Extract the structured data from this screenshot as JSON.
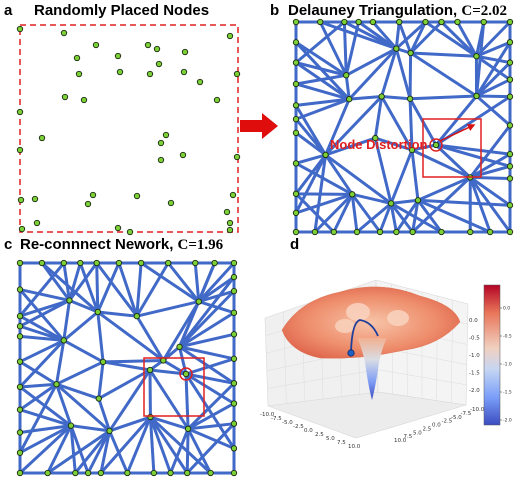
{
  "panels": {
    "a": {
      "letter": "a",
      "title": "Randomly Placed Nodes"
    },
    "b": {
      "letter": "b",
      "title": "Delauney Triangulation, ",
      "c_label": "C=2.02",
      "annotation": "Node Distortion"
    },
    "c": {
      "letter": "c",
      "title": "Re-connnect Nework, ",
      "c_label": "C=1.96"
    },
    "d": {
      "letter": "d",
      "x_ticks": [
        "-10.0",
        "-7.5",
        "-5.0",
        "-2.5",
        "0.0",
        "2.5",
        "5.0",
        "7.5",
        "10.0"
      ],
      "y_ticks": [
        "-10.0",
        "-7.5",
        "-5.0",
        "-2.5",
        "0.0",
        "2.5",
        "5.0",
        "7.5",
        "10.0"
      ],
      "z_ticks": [
        "0.0",
        "-0.5",
        "-1.0",
        "-1.5",
        "-2.0"
      ],
      "colorbar_ticks": [
        "0.0",
        "-0.5",
        "-1.0",
        "-1.5",
        "-2.0"
      ]
    }
  },
  "colors": {
    "edge": "#4169c8",
    "node_fill": "#7cd136",
    "node_stroke": "#1a2a10",
    "border_dashed": "#e02020",
    "highlight": "#e02020",
    "arrow": "#d81010"
  },
  "surface_colormap": [
    "#3b4cc0",
    "#6788ee",
    "#9abbff",
    "#c9d7f0",
    "#f7b89c",
    "#ee8468",
    "#d65244",
    "#b40426"
  ]
}
